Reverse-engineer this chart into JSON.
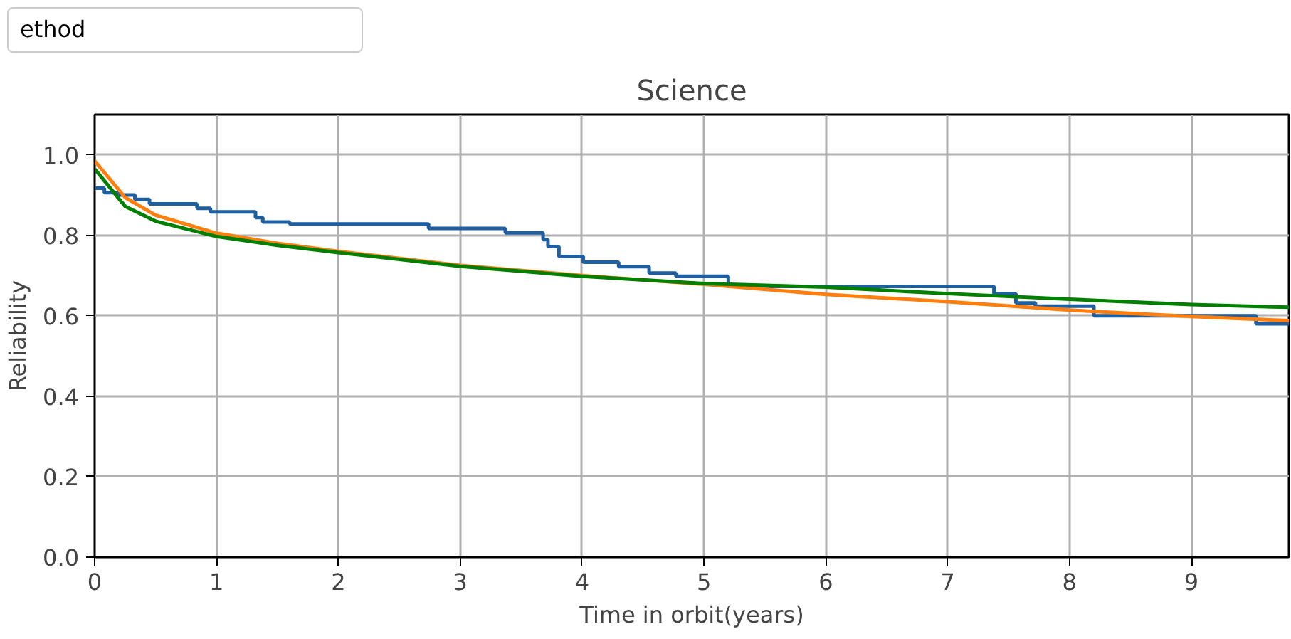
{
  "chart_data": {
    "type": "line",
    "title": "Science",
    "xlabel": "Time in orbit(years)",
    "ylabel": "Reliability",
    "annotations": [
      "ethod"
    ],
    "xlim": [
      0,
      9.8
    ],
    "xticks": [
      0,
      1,
      2,
      3,
      4,
      5,
      6,
      7,
      8,
      9
    ],
    "ylim": [
      0,
      1.1
    ],
    "yticks": [
      {
        "value": 0,
        "label": "0.0"
      },
      0.2,
      0.4,
      0.6,
      0.8,
      {
        "value": 1,
        "label": "1.0"
      }
    ],
    "grid": true,
    "series": [
      {
        "type": "step",
        "color": "#1f5fa0",
        "x": [
          0,
          0.08,
          0.2,
          0.33,
          0.45,
          0.84,
          0.95,
          1.32,
          1.38,
          1.6,
          2.74,
          3.37,
          3.68,
          3.72,
          3.81,
          4.01,
          4.3,
          4.55,
          4.77,
          5.2,
          7.38,
          7.56,
          7.72,
          8.2,
          9.53,
          9.8
        ],
        "values": [
          0.917,
          0.906,
          0.9,
          0.889,
          0.878,
          0.867,
          0.858,
          0.844,
          0.833,
          0.828,
          0.817,
          0.806,
          0.789,
          0.772,
          0.747,
          0.733,
          0.722,
          0.706,
          0.698,
          0.673,
          0.655,
          0.632,
          0.624,
          0.6,
          0.58,
          0.58
        ]
      },
      {
        "color": "#ff7f0e",
        "x": [
          0,
          0.25,
          0.5,
          1,
          1.5,
          2,
          3,
          4,
          5,
          6,
          7,
          8,
          9,
          9.8
        ],
        "values": [
          0.985,
          0.894,
          0.85,
          0.805,
          0.78,
          0.76,
          0.725,
          0.7,
          0.678,
          0.653,
          0.635,
          0.614,
          0.598,
          0.588
        ]
      },
      {
        "color": "#007f00",
        "x": [
          0,
          0.25,
          0.5,
          1,
          1.5,
          2,
          3,
          4,
          5,
          6,
          7,
          8,
          9,
          9.8
        ],
        "values": [
          0.965,
          0.872,
          0.835,
          0.797,
          0.775,
          0.757,
          0.723,
          0.698,
          0.68,
          0.671,
          0.655,
          0.641,
          0.628,
          0.621
        ]
      }
    ]
  }
}
